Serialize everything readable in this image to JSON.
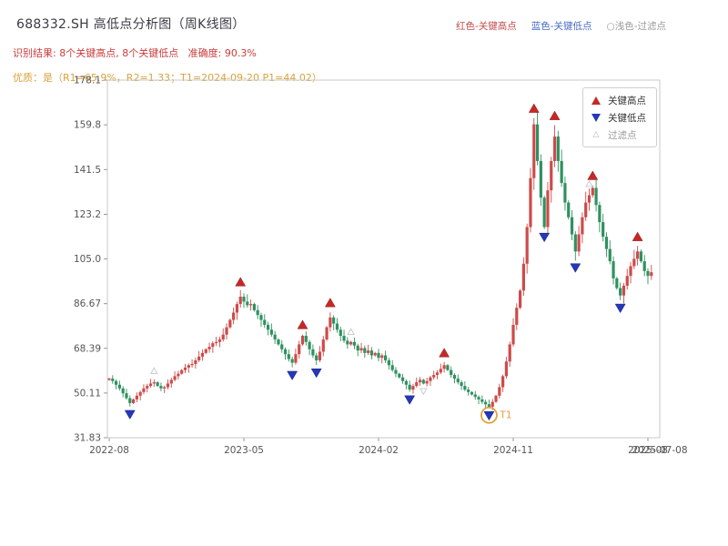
{
  "header": {
    "title": "688332.SH 高低点分析图（周K线图）",
    "legend_top": {
      "high_label": "红色-关键高点",
      "low_label": "蓝色-关键低点",
      "filter_label": "○浅色-过滤点"
    },
    "result_line": "识别结果: 8个关键高点, 8个关键低点   准确度: 90.3%",
    "quality_line": "优质：是（R1=65.9%，R2=1.33；T1=2024-09-20 P1=44.02）"
  },
  "legend_box": {
    "items": [
      {
        "label": "关键高点",
        "marker": "up-triangle-icon",
        "color": "#c62828"
      },
      {
        "label": "关键低点",
        "marker": "down-triangle-icon",
        "color": "#2438b8"
      },
      {
        "label": "过滤点",
        "marker": "hollow-triangle-icon",
        "color": "#b5b5b5"
      }
    ]
  },
  "chart_data": {
    "type": "candlestick",
    "symbol": "688332.SH",
    "period": "weekly",
    "title": "688332.SH 高低点分析图（周K线图）",
    "grid": false,
    "legend_position": "upper-right",
    "ylim": [
      31.83,
      178.1
    ],
    "y_ticks": [
      "31.83",
      "50.11",
      "68.39",
      "86.67",
      "105.0",
      "123.2",
      "141.5",
      "159.8",
      "178.1"
    ],
    "x_ticks": [
      {
        "label": "2022-08",
        "week": 0
      },
      {
        "label": "2023-05",
        "week": 39
      },
      {
        "label": "2024-02",
        "week": 78
      },
      {
        "label": "2024-11",
        "week": 117
      },
      {
        "label": "2025-08",
        "week": 156
      }
    ],
    "x_extra_label": "2025-07-08",
    "open_first": 55.5,
    "closes": [
      56.0,
      55.0,
      53.5,
      52.0,
      50.0,
      48.0,
      46.0,
      47.5,
      49.0,
      50.5,
      52.0,
      53.0,
      54.0,
      54.5,
      53.0,
      52.0,
      52.5,
      54.0,
      55.5,
      57.0,
      58.0,
      59.5,
      60.5,
      61.5,
      62.0,
      63.5,
      65.0,
      66.5,
      68.0,
      69.0,
      70.5,
      71.0,
      72.0,
      74.0,
      77.0,
      80.0,
      83.0,
      86.5,
      89.5,
      87.5,
      86.0,
      86.5,
      84.0,
      82.0,
      80.0,
      78.0,
      76.0,
      74.0,
      72.0,
      70.0,
      68.0,
      66.0,
      64.0,
      62.5,
      66.0,
      70.0,
      73.5,
      71.0,
      68.0,
      65.5,
      63.5,
      67.0,
      72.0,
      77.0,
      81.0,
      78.5,
      76.0,
      73.5,
      71.5,
      70.0,
      71.0,
      69.5,
      67.5,
      68.5,
      66.5,
      67.5,
      65.5,
      66.5,
      64.5,
      65.5,
      63.5,
      61.5,
      59.5,
      58.0,
      56.5,
      55.0,
      53.5,
      51.5,
      53.0,
      54.5,
      55.5,
      54.0,
      55.0,
      56.5,
      57.5,
      58.5,
      60.0,
      61.5,
      59.5,
      57.5,
      56.0,
      54.5,
      53.0,
      51.5,
      50.5,
      49.5,
      48.5,
      47.5,
      46.5,
      45.5,
      44.5,
      46.5,
      49.0,
      52.5,
      57.0,
      63.0,
      70.0,
      78.0,
      85.0,
      92.0,
      103.0,
      118.0,
      138.0,
      160.0,
      145.0,
      130.0,
      118.0,
      133.0,
      145.0,
      155.0,
      145.0,
      136.0,
      128.0,
      122.0,
      115.0,
      108.0,
      115.0,
      122.0,
      128.0,
      131.0,
      134.0,
      127.0,
      120.0,
      114.0,
      109.0,
      104.0,
      97.0,
      93.0,
      90.0,
      94.0,
      98.0,
      102.0,
      105.0,
      108.0,
      104.0,
      100.0,
      98.0,
      99.5
    ],
    "key_highs": [
      {
        "week": 38,
        "price": 92.0
      },
      {
        "week": 56,
        "price": 74.5
      },
      {
        "week": 64,
        "price": 83.5
      },
      {
        "week": 97,
        "price": 63.0
      },
      {
        "week": 123,
        "price": 163.0
      },
      {
        "week": 129,
        "price": 160.0
      },
      {
        "week": 140,
        "price": 135.5
      },
      {
        "week": 153,
        "price": 110.5
      }
    ],
    "key_lows": [
      {
        "week": 6,
        "price": 44.5
      },
      {
        "week": 53,
        "price": 60.5
      },
      {
        "week": 60,
        "price": 61.5
      },
      {
        "week": 87,
        "price": 50.5
      },
      {
        "week": 110,
        "price": 44.02,
        "t1": true
      },
      {
        "week": 126,
        "price": 117.0
      },
      {
        "week": 135,
        "price": 104.5
      },
      {
        "week": 148,
        "price": 88.0
      }
    ],
    "filtered_points": [
      {
        "week": 13,
        "type": "high",
        "price": 56.5
      },
      {
        "week": 70,
        "type": "high",
        "price": 72.5
      },
      {
        "week": 91,
        "type": "low",
        "price": 53.5
      },
      {
        "week": 139,
        "type": "high",
        "price": 133.0
      }
    ],
    "t1_annotation": {
      "label": "T1",
      "week": 110,
      "price": 44.02,
      "date": "2024-09-20",
      "p1": 44.02
    },
    "analysis": {
      "key_high_count": 8,
      "key_low_count": 8,
      "accuracy_pct": 90.3,
      "premium": "是",
      "R1_pct": 65.9,
      "R2": 1.33,
      "T1_date": "2024-09-20",
      "P1": 44.02
    },
    "colors": {
      "up": "#cf4a4a",
      "down": "#2f9160",
      "key_high": "#c62828",
      "key_low": "#2438b8",
      "t1": "#e2a13c",
      "filtered": "#cccccc",
      "axis": "#c9c9c9",
      "tick_text": "#555555"
    }
  }
}
